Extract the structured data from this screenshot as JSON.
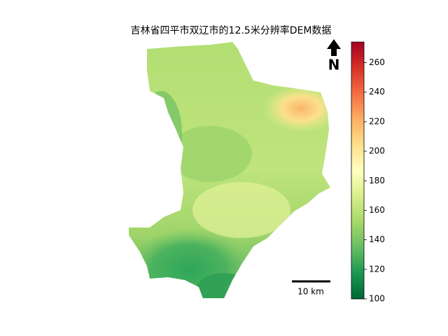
{
  "title": "吉林省四平市双辽市的12.5米分辨率DEM数据",
  "north_label": "N",
  "scale_bar": {
    "label": "10 km"
  },
  "colorbar": {
    "range": [
      100,
      274
    ],
    "ticks": [
      100,
      120,
      140,
      160,
      180,
      200,
      220,
      240,
      260
    ],
    "colormap": [
      "#006837",
      "#1a9850",
      "#66bd63",
      "#a6d96a",
      "#d9ef8b",
      "#ffffbf",
      "#fee08b",
      "#fdae61",
      "#f46d43",
      "#d73027",
      "#a50026"
    ]
  }
}
